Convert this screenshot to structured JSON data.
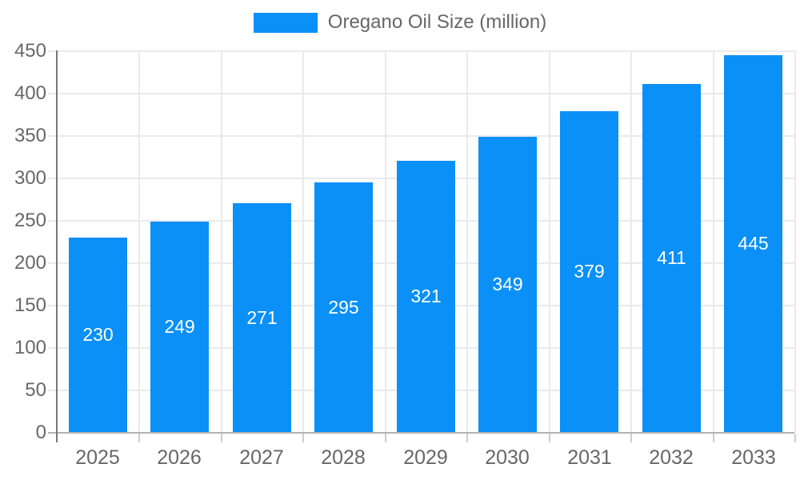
{
  "chart_data": {
    "type": "bar",
    "legend": "Oregano Oil Size (million)",
    "legend_position": "top",
    "categories": [
      "2025",
      "2026",
      "2027",
      "2028",
      "2029",
      "2030",
      "2031",
      "2032",
      "2033"
    ],
    "values": [
      230,
      249,
      271,
      295,
      321,
      349,
      379,
      411,
      445
    ],
    "title": "",
    "xlabel": "",
    "ylabel": "",
    "ylim": [
      0,
      450
    ],
    "ytick_step": 50,
    "grid": true,
    "bar_color": "#0a90f7",
    "bar_label_color": "#ffffff",
    "axis_text_color": "#676767",
    "grid_color": "#eaeaea",
    "baseline_color": "#b3b3b3",
    "axis_line_color": "#777777"
  }
}
